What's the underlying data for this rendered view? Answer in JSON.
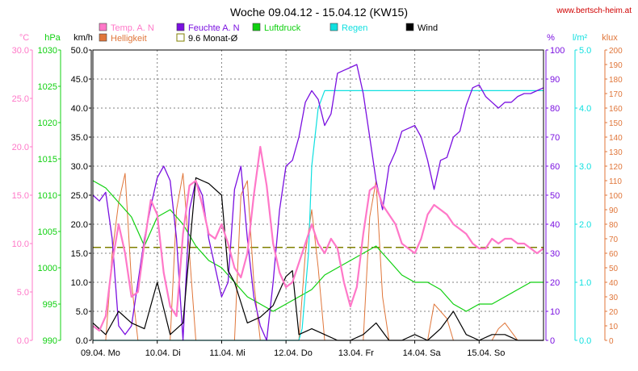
{
  "title": "Woche 09.04.12 - 15.04.12 (KW15)",
  "website": "www.bertsch-heim.at",
  "legend": [
    {
      "key": "temp",
      "label": "Temp. A. N",
      "color": "#ff78c8"
    },
    {
      "key": "hell",
      "label": "Helligkeit",
      "color": "#e0763a"
    },
    {
      "key": "feuchte",
      "label": "Feuchte A. N",
      "color": "#7a10e0"
    },
    {
      "key": "mavg",
      "label": "9.6 Monat-Ø",
      "color": "#808000"
    },
    {
      "key": "luft",
      "label": "Luftdruck",
      "color": "#10d010"
    },
    {
      "key": "regen",
      "label": "Regen",
      "color": "#10e0e0"
    },
    {
      "key": "wind",
      "label": "Wind",
      "color": "#000000"
    }
  ],
  "chart_data": {
    "type": "line",
    "title": "Woche 09.04.12 - 15.04.12 (KW15)",
    "x_labels": [
      "09.04. Mo",
      "10.04. Di",
      "11.04. Mi",
      "12.04. Do",
      "13.04. Fr",
      "14.04. Sa",
      "15.04. So"
    ],
    "x_range_days": [
      0,
      7
    ],
    "grid": true,
    "axes": {
      "temp": {
        "unit": "°C",
        "min": 0,
        "max": 30,
        "ticks": [
          "0.0",
          "5.0",
          "10.0",
          "15.0",
          "20.0",
          "25.0",
          "30.0"
        ],
        "color": "#ff78c8"
      },
      "luft": {
        "unit": "hPa",
        "min": 990,
        "max": 1030,
        "ticks": [
          "990",
          "995",
          "1000",
          "1005",
          "1010",
          "1015",
          "1020",
          "1025",
          "1030"
        ],
        "color": "#10d010"
      },
      "wind": {
        "unit": "km/h",
        "min": 0,
        "max": 50,
        "ticks": [
          "0.0",
          "5.0",
          "10.0",
          "15.0",
          "20.0",
          "25.0",
          "30.0",
          "35.0",
          "40.0",
          "45.0",
          "50.0"
        ],
        "color": "#000000"
      },
      "feuchte": {
        "unit": "%",
        "min": 0,
        "max": 100,
        "ticks": [
          "0",
          "10",
          "20",
          "30",
          "40",
          "50",
          "60",
          "70",
          "80",
          "90",
          "100"
        ],
        "color": "#7a10e0"
      },
      "regen": {
        "unit": "l/m²",
        "min": 0,
        "max": 5,
        "ticks": [
          "0.0",
          "1.0",
          "2.0",
          "3.0",
          "4.0",
          "5.0"
        ],
        "color": "#10e0e0"
      },
      "hell": {
        "unit": "klux",
        "min": 0,
        "max": 200,
        "ticks": [
          "0",
          "10",
          "20",
          "30",
          "40",
          "50",
          "60",
          "70",
          "80",
          "90",
          "100",
          "110",
          "120",
          "130",
          "140",
          "150",
          "160",
          "170",
          "180",
          "190",
          "200"
        ],
        "color": "#e0763a"
      }
    },
    "monthly_avg": 9.6,
    "series": [
      {
        "key": "temp",
        "name": "Temp. A. N",
        "axis": "temp",
        "x": [
          0,
          0.1,
          0.2,
          0.3,
          0.4,
          0.5,
          0.6,
          0.7,
          0.8,
          0.9,
          1.0,
          1.1,
          1.2,
          1.3,
          1.4,
          1.5,
          1.6,
          1.7,
          1.8,
          1.9,
          2.0,
          2.1,
          2.2,
          2.3,
          2.4,
          2.5,
          2.6,
          2.7,
          2.8,
          2.9,
          3.0,
          3.1,
          3.2,
          3.3,
          3.4,
          3.5,
          3.6,
          3.7,
          3.8,
          3.9,
          4.0,
          4.1,
          4.2,
          4.3,
          4.4,
          4.5,
          4.6,
          4.7,
          4.8,
          4.9,
          5.0,
          5.1,
          5.2,
          5.3,
          5.4,
          5.5,
          5.6,
          5.7,
          5.8,
          5.9,
          6.0,
          6.1,
          6.2,
          6.3,
          6.4,
          6.5,
          6.6,
          6.7,
          6.8,
          6.9,
          7.0
        ],
        "y": [
          1.5,
          1.0,
          2.5,
          8.0,
          12.0,
          9.0,
          4.5,
          5.0,
          10.0,
          14.5,
          13.0,
          7.0,
          3.5,
          2.5,
          11.0,
          16.0,
          16.5,
          14.0,
          11.0,
          10.5,
          12.0,
          10.0,
          7.5,
          6.5,
          9.0,
          15.0,
          20.0,
          16.0,
          10.0,
          7.0,
          5.5,
          6.0,
          8.0,
          10.0,
          12.0,
          10.0,
          9.0,
          10.5,
          9.5,
          6.0,
          3.5,
          5.5,
          11.0,
          15.5,
          16.0,
          14.0,
          13.0,
          12.0,
          10.0,
          9.5,
          9.0,
          10.5,
          13.0,
          14.0,
          13.5,
          13.0,
          12.0,
          11.5,
          11.0,
          10.0,
          9.5,
          9.5,
          10.5,
          10.0,
          10.5,
          10.5,
          10.0,
          10.0,
          9.5,
          9.0,
          9.5
        ]
      },
      {
        "key": "feuchte",
        "name": "Feuchte A. N",
        "axis": "feuchte",
        "x": [
          0,
          0.1,
          0.2,
          0.3,
          0.4,
          0.5,
          0.6,
          0.7,
          0.8,
          0.9,
          1.0,
          1.1,
          1.2,
          1.3,
          1.4,
          1.5,
          1.6,
          1.7,
          1.8,
          1.9,
          2.0,
          2.1,
          2.2,
          2.3,
          2.4,
          2.5,
          2.6,
          2.7,
          2.8,
          2.9,
          3.0,
          3.1,
          3.2,
          3.3,
          3.4,
          3.5,
          3.6,
          3.7,
          3.8,
          3.9,
          4.0,
          4.1,
          4.2,
          4.3,
          4.4,
          4.5,
          4.6,
          4.7,
          4.8,
          4.9,
          5.0,
          5.1,
          5.2,
          5.3,
          5.4,
          5.5,
          5.6,
          5.7,
          5.8,
          5.9,
          6.0,
          6.1,
          6.2,
          6.3,
          6.4,
          6.5,
          6.6,
          6.7,
          6.8,
          6.9,
          7.0
        ],
        "y": [
          50,
          48,
          51,
          35,
          5,
          2,
          5,
          20,
          35,
          46,
          56,
          60,
          55,
          35,
          0,
          45,
          55,
          50,
          35,
          25,
          15,
          20,
          52,
          60,
          35,
          15,
          5,
          0,
          20,
          45,
          60,
          62,
          70,
          82,
          86,
          83,
          74,
          78,
          92,
          93,
          94,
          95,
          85,
          70,
          55,
          45,
          60,
          65,
          72,
          73,
          74,
          70,
          62,
          52,
          62,
          63,
          70,
          72,
          81,
          87,
          88,
          84,
          82,
          80,
          82,
          82,
          84,
          85,
          85,
          86,
          87
        ]
      },
      {
        "key": "luft",
        "name": "Luftdruck",
        "axis": "luft",
        "x": [
          0,
          0.2,
          0.4,
          0.6,
          0.8,
          1.0,
          1.2,
          1.4,
          1.6,
          1.8,
          2.0,
          2.2,
          2.4,
          2.6,
          2.8,
          3.0,
          3.2,
          3.4,
          3.6,
          3.8,
          4.0,
          4.2,
          4.4,
          4.6,
          4.8,
          5.0,
          5.2,
          5.4,
          5.6,
          5.8,
          6.0,
          6.2,
          6.4,
          6.6,
          6.8,
          7.0
        ],
        "y": [
          1012,
          1011,
          1009,
          1007,
          1003,
          1007,
          1008,
          1006,
          1003,
          1001,
          1000,
          998,
          996,
          995,
          994,
          995,
          996,
          997,
          999,
          1000,
          1001,
          1002,
          1003,
          1001,
          999,
          998,
          998,
          997,
          995,
          994,
          995,
          995,
          996,
          997,
          998,
          998
        ]
      },
      {
        "key": "wind",
        "name": "Wind",
        "axis": "wind",
        "x": [
          0,
          0.2,
          0.4,
          0.6,
          0.8,
          1.0,
          1.2,
          1.4,
          1.6,
          1.8,
          2.0,
          2.1,
          2.2,
          2.4,
          2.6,
          2.8,
          3.0,
          3.1,
          3.2,
          3.4,
          3.6,
          3.8,
          4.0,
          4.2,
          4.4,
          4.6,
          4.8,
          5.0,
          5.2,
          5.4,
          5.6,
          5.8,
          6.0,
          6.2,
          6.4,
          6.6,
          6.8,
          7.0
        ],
        "y": [
          3,
          1,
          5,
          3,
          2,
          10,
          1,
          3,
          28,
          27,
          25,
          12,
          10,
          3,
          4,
          6,
          11,
          12,
          1,
          2,
          1,
          0,
          0,
          1,
          3,
          0,
          0,
          1,
          0,
          2,
          5,
          1,
          0,
          1,
          1,
          0,
          0,
          0
        ]
      },
      {
        "key": "regen",
        "name": "Regen",
        "axis": "regen",
        "x": [
          0,
          3.2,
          3.25,
          3.35,
          3.4,
          3.5,
          3.6,
          3.7,
          3.8,
          3.9,
          4.0,
          5.0,
          6.0,
          7.0
        ],
        "y": [
          0,
          0,
          0.2,
          1.5,
          3.0,
          4.0,
          4.3,
          4.3,
          4.3,
          4.3,
          4.3,
          4.3,
          4.3,
          4.3
        ]
      },
      {
        "key": "hell",
        "name": "Helligkeit",
        "axis": "hell",
        "x": [
          0,
          0.2,
          0.3,
          0.4,
          0.5,
          0.6,
          0.7,
          0.8,
          1.0,
          1.2,
          1.3,
          1.4,
          1.5,
          1.6,
          1.8,
          2.0,
          2.2,
          2.3,
          2.4,
          2.5,
          2.6,
          2.8,
          3.0,
          3.2,
          3.3,
          3.4,
          3.5,
          3.6,
          3.8,
          4.0,
          4.2,
          4.3,
          4.4,
          4.5,
          4.6,
          4.8,
          5.0,
          5.2,
          5.3,
          5.4,
          5.5,
          5.6,
          5.8,
          6.0,
          6.2,
          6.3,
          6.4,
          6.5,
          6.6,
          6.8,
          7.0
        ],
        "y": [
          0,
          0,
          60,
          95,
          115,
          40,
          0,
          0,
          0,
          0,
          90,
          115,
          60,
          0,
          0,
          0,
          0,
          100,
          110,
          40,
          0,
          0,
          0,
          0,
          60,
          90,
          50,
          0,
          0,
          0,
          0,
          85,
          110,
          30,
          0,
          0,
          0,
          0,
          25,
          20,
          15,
          0,
          0,
          0,
          0,
          8,
          12,
          6,
          0,
          0,
          0
        ]
      }
    ]
  }
}
